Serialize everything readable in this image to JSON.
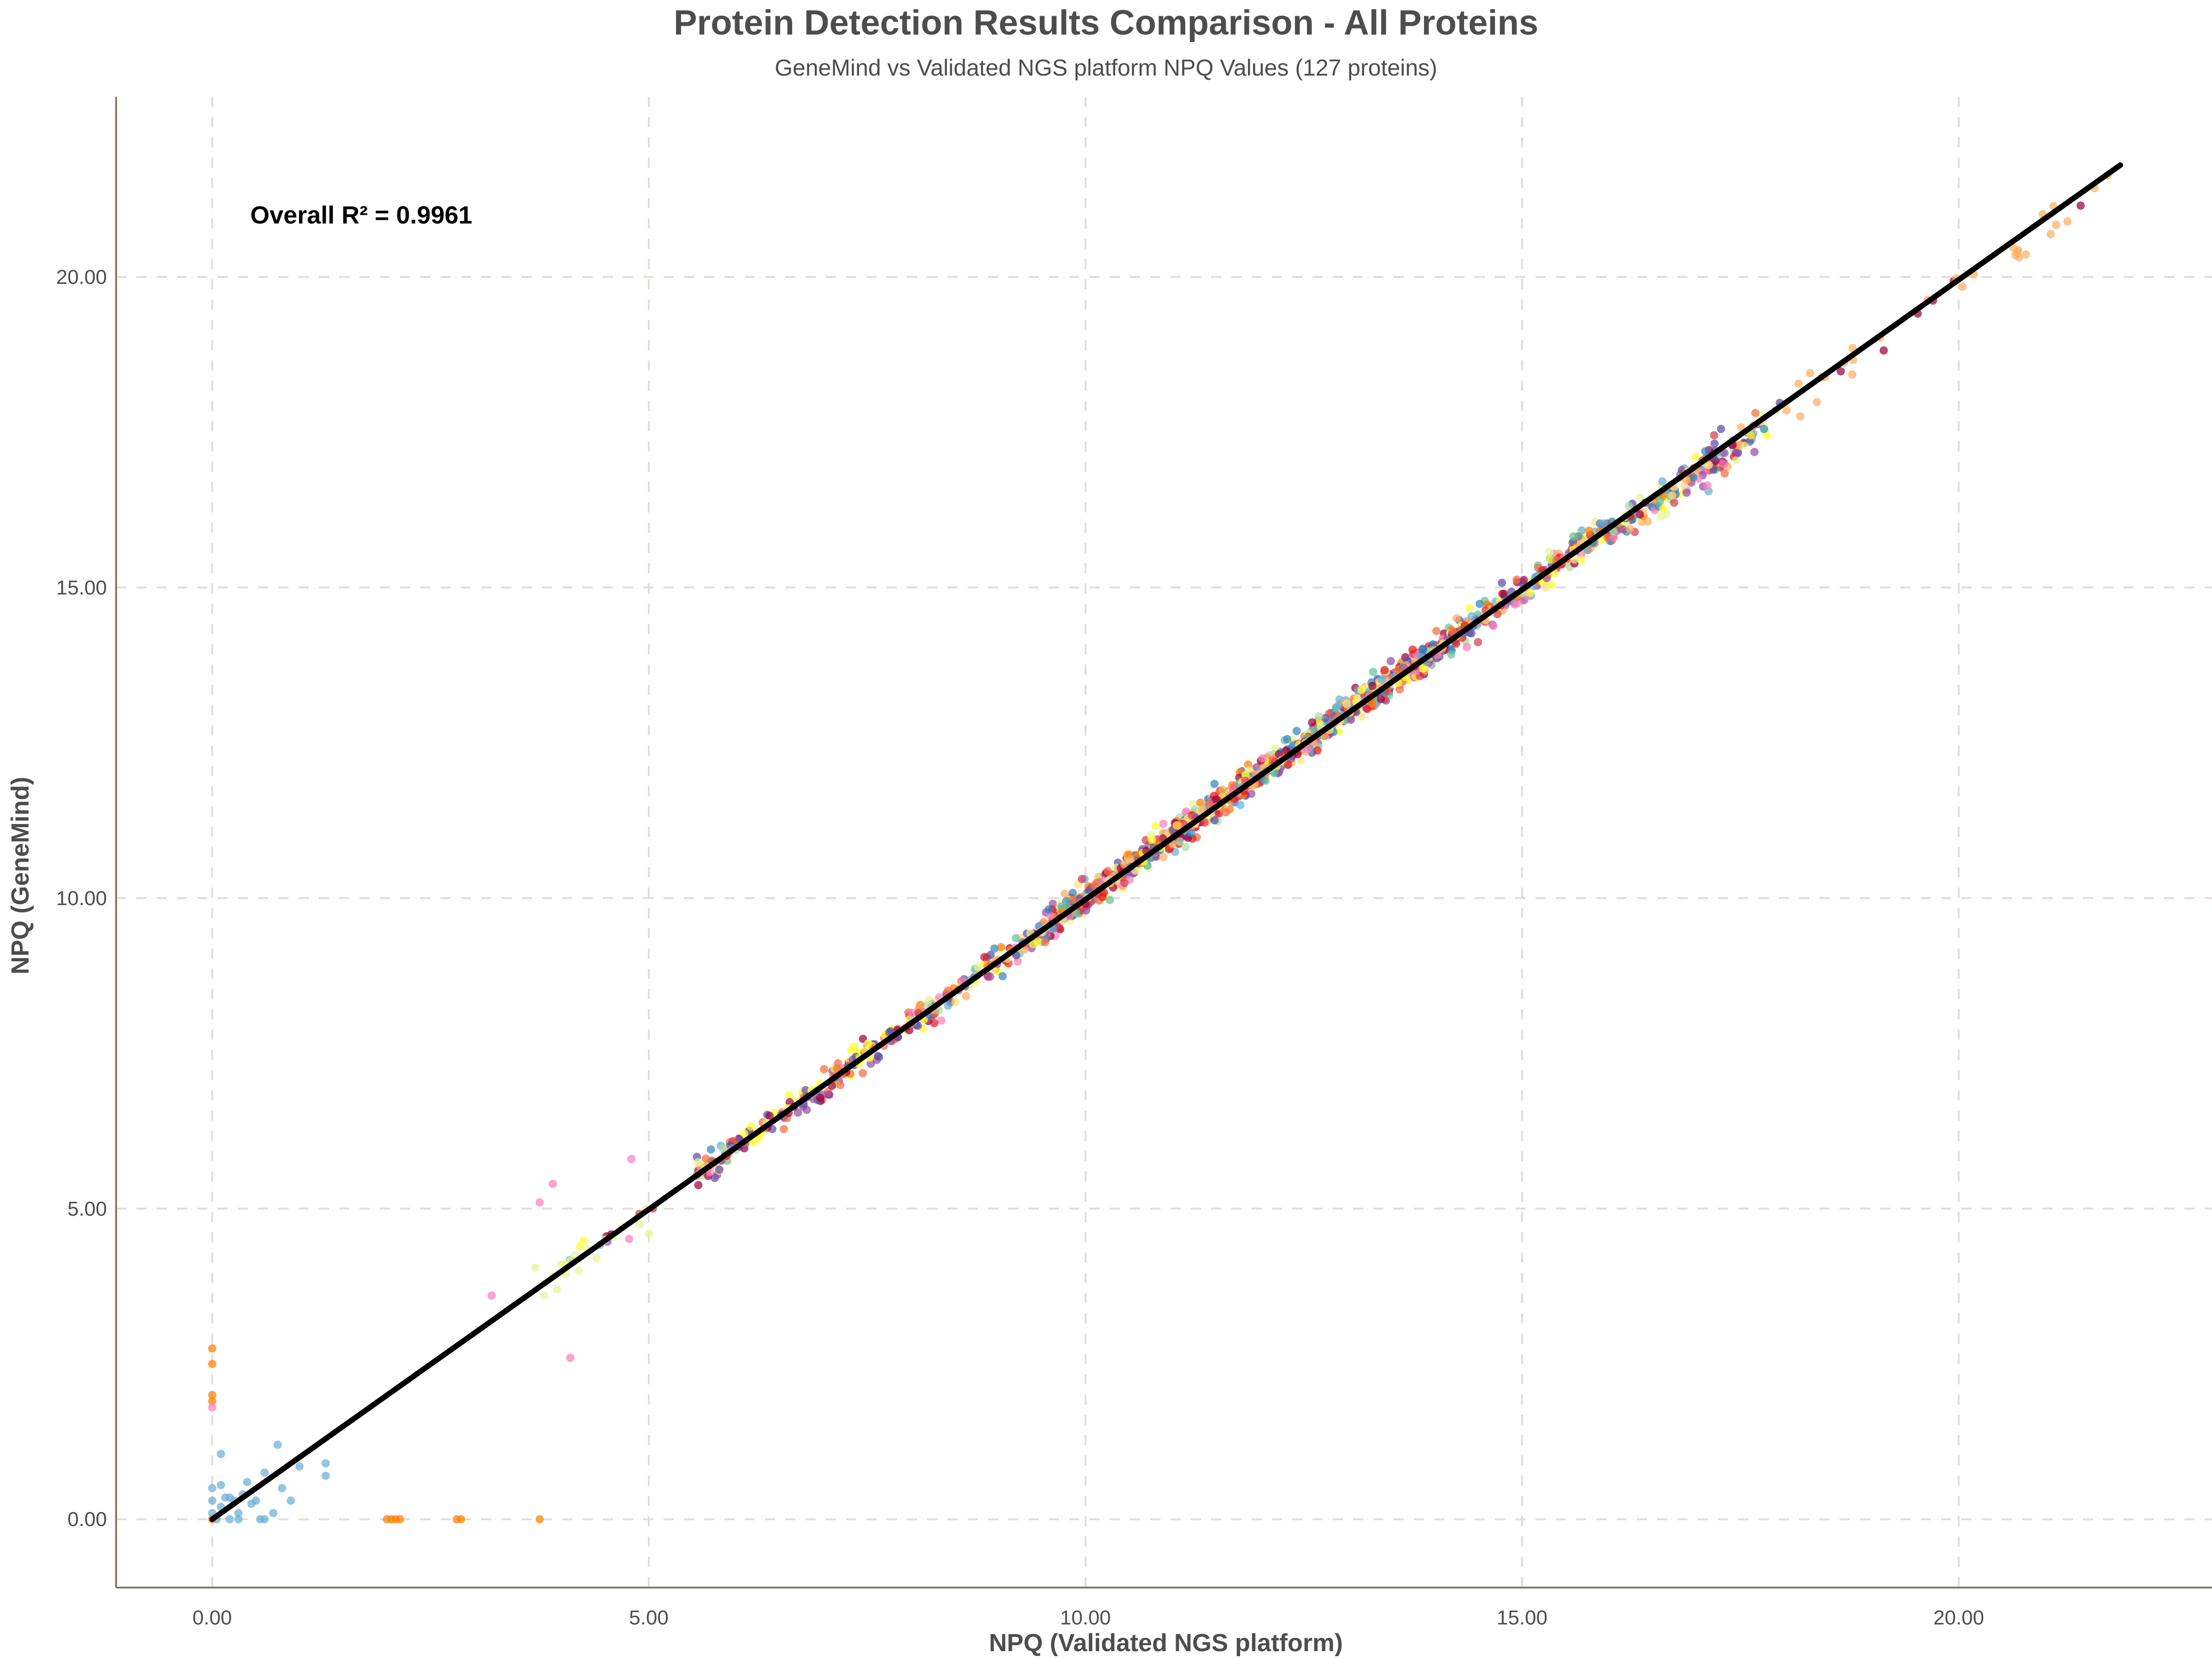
{
  "chart_data": {
    "type": "scatter",
    "title": "Protein Detection Results Comparison - All Proteins",
    "subtitle": "GeneMind vs Validated NGS platform NPQ Values (127 proteins)",
    "xlabel": "NPQ (Validated NGS platform)",
    "ylabel": "NPQ (GeneMind)",
    "xlim": [
      -1.1,
      22.9
    ],
    "ylim": [
      -1.1,
      22.9
    ],
    "x_ticks": [
      0,
      5,
      10,
      15,
      20
    ],
    "y_ticks": [
      0,
      5,
      10,
      15,
      20
    ],
    "x_tick_labels": [
      "0.00",
      "5.00",
      "10.00",
      "15.00",
      "20.00"
    ],
    "y_tick_labels": [
      "0.00",
      "5.00",
      "10.00",
      "15.00",
      "20.00"
    ],
    "grid": "dashed",
    "legend": "none",
    "annotation": "Overall R² = 0.9961",
    "fit_line": {
      "x": [
        0,
        21.85
      ],
      "y": [
        0,
        21.8
      ],
      "color": "#000000"
    },
    "point_colors": [
      "#9e0142",
      "#d53e4f",
      "#f46d43",
      "#fdae61",
      "#fee08b",
      "#ffff33",
      "#e6f598",
      "#abdda4",
      "#66c2a5",
      "#3288bd",
      "#5e4fa2",
      "#f781bf",
      "#ff7f00",
      "#6baed6",
      "#984ea3",
      "#e41a1c"
    ],
    "series": [
      {
        "name": "",
        "color": "#6baed6",
        "x": [
          0,
          0,
          0,
          0.05,
          0.1,
          0.1,
          0.15,
          0.2,
          0.25,
          0.3,
          0.35,
          0.4,
          0.5,
          0.55,
          0.6,
          0.7,
          0.75,
          0.8,
          0.9,
          1.0,
          1.3,
          1.3,
          0.1,
          0.2,
          0.3,
          0.45,
          0.6
        ],
        "y": [
          0.5,
          0.3,
          0.1,
          0.0,
          0.2,
          0.55,
          0.35,
          0.0,
          0.3,
          0.0,
          0.4,
          0.6,
          0.3,
          0.0,
          0.75,
          0.1,
          1.2,
          0.5,
          0.3,
          0.85,
          0.9,
          0.7,
          1.05,
          0.35,
          0.1,
          0.25,
          0.0
        ]
      },
      {
        "name": "",
        "color": "#ff7f00",
        "x": [
          0,
          0,
          0,
          0,
          0,
          2.0,
          2.05,
          2.1,
          2.15,
          2.8,
          2.85,
          3.75
        ],
        "y": [
          2.75,
          2.5,
          2.0,
          1.9,
          0.0,
          0.0,
          0.0,
          0.0,
          0.0,
          0.0,
          0.0,
          0.0
        ]
      },
      {
        "name": "",
        "color": "#f781bf",
        "x": [
          0,
          3.2,
          3.75,
          3.9,
          4.1,
          4.8
        ],
        "y": [
          1.8,
          3.6,
          5.1,
          5.4,
          2.6,
          5.8
        ]
      },
      {
        "name": "",
        "color": "#e6f598",
        "x": [
          3.7,
          3.8,
          3.9,
          3.95,
          4.0,
          4.05,
          4.1,
          4.15,
          4.2,
          4.3,
          4.4,
          4.5,
          4.6,
          4.7,
          4.9,
          5.0
        ],
        "y": [
          4.05,
          3.6,
          3.9,
          3.7,
          4.1,
          3.95,
          4.15,
          4.25,
          4.0,
          4.35,
          4.2,
          4.5,
          4.55,
          4.7,
          4.75,
          4.6
        ]
      }
    ],
    "cloud": {
      "x_range": [
        4.0,
        21.8
      ],
      "scatter_sd": 0.12,
      "note": "dense colored band along the identity line"
    }
  }
}
